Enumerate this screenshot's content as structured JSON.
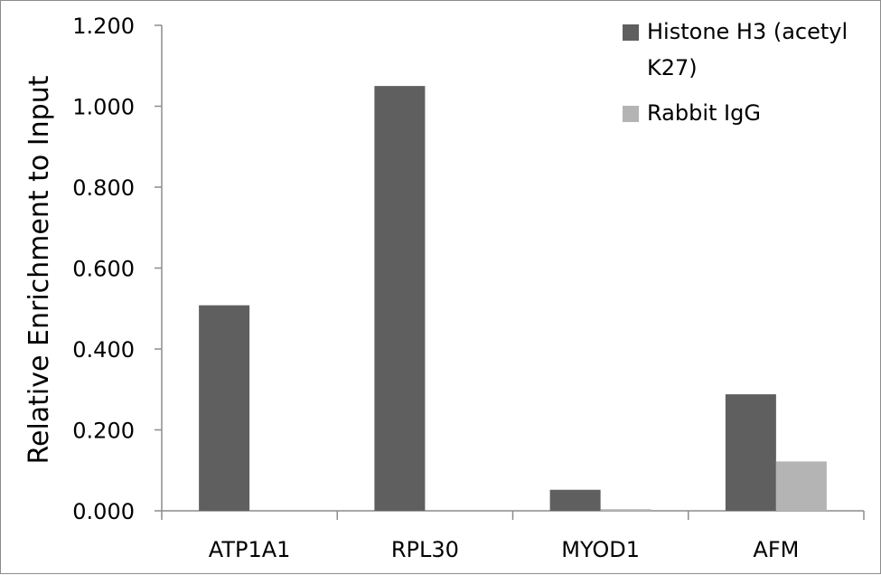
{
  "chart_data": {
    "type": "bar",
    "title": "",
    "xlabel": "",
    "ylabel": "Relative Enrichment to Input",
    "ylim": [
      0,
      1.2
    ],
    "yticks": [
      0,
      0.2,
      0.4,
      0.6,
      0.8,
      1.0,
      1.2
    ],
    "ytick_labels": [
      "0.000",
      "0.200",
      "0.400",
      "0.600",
      "0.800",
      "1.000",
      "1.200"
    ],
    "grid": false,
    "legend_position": "top-right",
    "categories": [
      "ATP1A1",
      "RPL30",
      "MYOD1",
      "AFM"
    ],
    "series": [
      {
        "name": "Histone H3 (acetyl K27)",
        "legend_lines": [
          "Histone H3 (acetyl",
          "K27)"
        ],
        "color": "#5f5f5f",
        "values": [
          0.508,
          1.05,
          0.052,
          0.288
        ]
      },
      {
        "name": "Rabbit IgG",
        "legend_lines": [
          "Rabbit IgG"
        ],
        "color": "#b4b4b4",
        "values": [
          0.0,
          0.0,
          0.004,
          0.122
        ]
      }
    ]
  }
}
